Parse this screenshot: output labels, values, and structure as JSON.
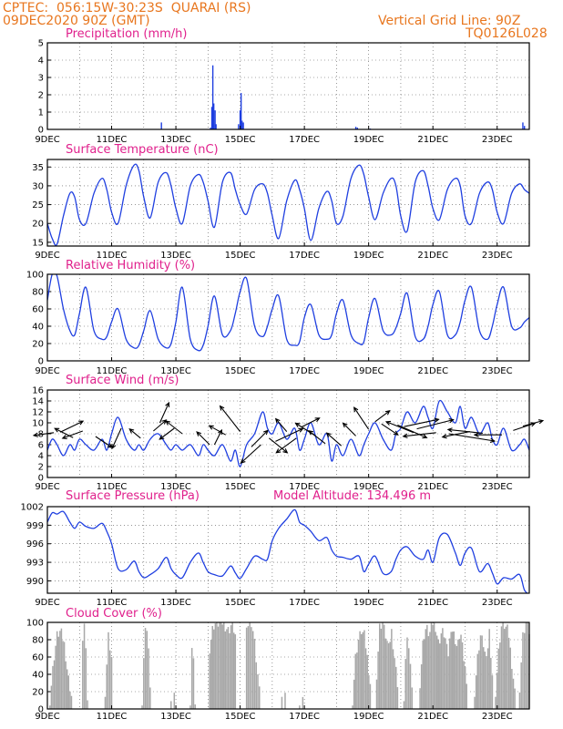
{
  "header": {
    "line1": "CPTEC:  056:15W-30:23S  QUARAI (RS)",
    "line2": "09DEC2020 90Z (GMT)",
    "right1": "Vertical Grid Line: 90Z",
    "right2": "TQ0126L028"
  },
  "x_ticks": [
    "9DEC",
    "11DEC",
    "13DEC",
    "15DEC",
    "17DEC",
    "19DEC",
    "21DEC",
    "23DEC"
  ],
  "colors": {
    "header": "#e8761e",
    "title": "#e0208c",
    "series": "#1f3fe0",
    "cloud": "#a8a8a8"
  },
  "chart_data": [
    {
      "type": "bar",
      "title": "Precipitation (mm/h)",
      "ylim": [
        0,
        5
      ],
      "yticks": [
        "0",
        "1",
        "2",
        "3",
        "4",
        "5"
      ],
      "xlim": [
        9,
        24
      ],
      "x": [
        12.55,
        14.08,
        14.12,
        14.15,
        14.18,
        14.22,
        14.25,
        14.95,
        15.0,
        15.03,
        15.06,
        15.1,
        18.6,
        18.65,
        19.05,
        23.8,
        23.85
      ],
      "values": [
        0.4,
        0.1,
        1.3,
        3.7,
        1.5,
        1.1,
        0.3,
        0.3,
        1.1,
        2.1,
        0.5,
        0.4,
        0.15,
        0.1,
        0.05,
        0.4,
        0.2
      ]
    },
    {
      "type": "line",
      "title": "Surface Temperature (nC)",
      "ylim": [
        14,
        37
      ],
      "yticks": [
        "15",
        "20",
        "25",
        "30",
        "35"
      ],
      "x": [
        9.0,
        9.15,
        9.3,
        9.5,
        9.7,
        9.85,
        10.0,
        10.2,
        10.45,
        10.7,
        10.85,
        11.0,
        11.2,
        11.45,
        11.7,
        11.85,
        12.0,
        12.2,
        12.45,
        12.7,
        12.85,
        13.0,
        13.2,
        13.45,
        13.7,
        13.85,
        14.0,
        14.2,
        14.45,
        14.7,
        14.85,
        15.0,
        15.2,
        15.45,
        15.7,
        15.85,
        16.0,
        16.2,
        16.45,
        16.7,
        16.85,
        17.0,
        17.2,
        17.45,
        17.7,
        17.85,
        18.0,
        18.2,
        18.45,
        18.7,
        18.85,
        19.0,
        19.2,
        19.45,
        19.7,
        19.85,
        20.0,
        20.2,
        20.45,
        20.7,
        20.85,
        21.0,
        21.2,
        21.45,
        21.7,
        21.85,
        22.0,
        22.2,
        22.45,
        22.7,
        22.85,
        23.0,
        23.2,
        23.45,
        23.7,
        23.85,
        24.0
      ],
      "series": [
        {
          "values": [
            20,
            16,
            14.5,
            22,
            28,
            27,
            21,
            20,
            28,
            32,
            29,
            23,
            20,
            30,
            35.5,
            34,
            27,
            21.5,
            31,
            33.5,
            30,
            24,
            20,
            30,
            33,
            31,
            26,
            19,
            31,
            33.5,
            29,
            25,
            22.5,
            29,
            30.5,
            28,
            22,
            16,
            26,
            31.5,
            29,
            24,
            15.5,
            24,
            28.5,
            26,
            20,
            22,
            32,
            35.5,
            33,
            27,
            21,
            28,
            32,
            30,
            22,
            18,
            31,
            34,
            30,
            24,
            21,
            29,
            32,
            30,
            22,
            20,
            28,
            31,
            29,
            23,
            20,
            28,
            30.5,
            29,
            28
          ]
        }
      ]
    },
    {
      "type": "line",
      "title": "Relative Humidity (%)",
      "ylim": [
        0,
        100
      ],
      "yticks": [
        "0",
        "20",
        "40",
        "60",
        "80",
        "100"
      ],
      "x": [
        9.0,
        9.15,
        9.3,
        9.5,
        9.7,
        9.85,
        10.0,
        10.2,
        10.45,
        10.7,
        10.85,
        11.0,
        11.2,
        11.45,
        11.7,
        11.85,
        12.0,
        12.2,
        12.45,
        12.7,
        12.85,
        13.0,
        13.2,
        13.45,
        13.7,
        13.85,
        14.0,
        14.2,
        14.45,
        14.7,
        14.85,
        15.0,
        15.2,
        15.45,
        15.7,
        15.85,
        16.0,
        16.2,
        16.45,
        16.7,
        16.85,
        17.0,
        17.2,
        17.45,
        17.7,
        17.85,
        18.0,
        18.2,
        18.45,
        18.7,
        18.85,
        19.0,
        19.2,
        19.45,
        19.7,
        19.85,
        20.0,
        20.2,
        20.45,
        20.7,
        20.85,
        21.0,
        21.2,
        21.45,
        21.7,
        21.85,
        22.0,
        22.2,
        22.45,
        22.7,
        22.85,
        23.0,
        23.2,
        23.45,
        23.7,
        23.85,
        24.0
      ],
      "series": [
        {
          "values": [
            70,
            100,
            98,
            60,
            35,
            30,
            55,
            85,
            35,
            25,
            28,
            45,
            60,
            25,
            15,
            18,
            35,
            58,
            25,
            15,
            20,
            45,
            85,
            25,
            12,
            18,
            40,
            75,
            30,
            35,
            55,
            80,
            95,
            40,
            28,
            40,
            60,
            75,
            25,
            18,
            22,
            50,
            65,
            30,
            25,
            30,
            55,
            70,
            30,
            20,
            22,
            50,
            72,
            35,
            30,
            38,
            55,
            78,
            28,
            25,
            40,
            65,
            80,
            30,
            30,
            45,
            70,
            85,
            35,
            25,
            40,
            65,
            85,
            40,
            38,
            45,
            50
          ]
        }
      ]
    },
    {
      "type": "line",
      "title": "Surface Wind (m/s)",
      "ylim": [
        0,
        16
      ],
      "yticks": [
        "0",
        "2",
        "4",
        "6",
        "8",
        "10",
        "12",
        "14",
        "16"
      ],
      "x": [
        9.0,
        9.15,
        9.3,
        9.5,
        9.7,
        9.85,
        10.0,
        10.2,
        10.45,
        10.7,
        10.85,
        11.0,
        11.2,
        11.45,
        11.7,
        11.85,
        12.0,
        12.2,
        12.45,
        12.7,
        12.85,
        13.0,
        13.2,
        13.45,
        13.7,
        13.85,
        14.0,
        14.2,
        14.45,
        14.7,
        14.85,
        15.0,
        15.2,
        15.45,
        15.7,
        15.85,
        16.0,
        16.2,
        16.45,
        16.7,
        16.85,
        17.0,
        17.2,
        17.45,
        17.7,
        17.85,
        18.0,
        18.2,
        18.45,
        18.7,
        18.85,
        19.0,
        19.2,
        19.45,
        19.7,
        19.85,
        20.0,
        20.2,
        20.45,
        20.7,
        20.85,
        21.0,
        21.2,
        21.45,
        21.7,
        21.85,
        22.0,
        22.2,
        22.45,
        22.7,
        22.85,
        23.0,
        23.2,
        23.45,
        23.7,
        23.85,
        24.0
      ],
      "series": [
        {
          "values": [
            5,
            7,
            6,
            4,
            6,
            5,
            7,
            6,
            5,
            7,
            5,
            8,
            11,
            7,
            5,
            6,
            5,
            7,
            8,
            6,
            5,
            6,
            5,
            6,
            4,
            6,
            5,
            4,
            6,
            3,
            5,
            2,
            6,
            8,
            12,
            9,
            8,
            10,
            7,
            9,
            5,
            7,
            10,
            6,
            8,
            3,
            6,
            4,
            7,
            4,
            6,
            8,
            10,
            7,
            5,
            8,
            9,
            12,
            10,
            13,
            11,
            9,
            14,
            12,
            10,
            13,
            9,
            11,
            8,
            10,
            7,
            6,
            9,
            5,
            6,
            7,
            5
          ]
        }
      ],
      "arrows": [
        [
          9.2,
          8.2,
          -22,
          3
        ],
        [
          9.4,
          8.3,
          25,
          -12
        ],
        [
          9.8,
          7.3,
          -20,
          -10
        ],
        [
          10.1,
          8.5,
          -22,
          8
        ],
        [
          10.5,
          7.5,
          18,
          12
        ],
        [
          11.3,
          9,
          -10,
          22
        ],
        [
          11.9,
          7.2,
          -12,
          -10
        ],
        [
          12.3,
          8.5,
          14,
          -12
        ],
        [
          12.5,
          10,
          10,
          -22
        ],
        [
          12.95,
          9,
          -16,
          12
        ],
        [
          13.2,
          8,
          -18,
          -14
        ],
        [
          14.05,
          6,
          -14,
          -14
        ],
        [
          14.2,
          6,
          8,
          -16
        ],
        [
          14.55,
          7.8,
          -18,
          -10
        ],
        [
          15.0,
          8.4,
          -22,
          -28
        ],
        [
          15.35,
          5.6,
          18,
          -18
        ],
        [
          15.65,
          6,
          -22,
          20
        ],
        [
          15.9,
          7.2,
          20,
          16
        ],
        [
          16.1,
          6.6,
          30,
          -14
        ],
        [
          16.45,
          8.4,
          -12,
          -14
        ],
        [
          16.75,
          7.2,
          -22,
          16
        ],
        [
          16.9,
          9.2,
          20,
          -10
        ],
        [
          17.35,
          7.6,
          -22,
          -14
        ],
        [
          17.65,
          6.2,
          -18,
          -14
        ],
        [
          18.15,
          5.8,
          -16,
          -14
        ],
        [
          18.6,
          7.6,
          -14,
          -14
        ],
        [
          19.0,
          8.8,
          -16,
          -24
        ],
        [
          19.2,
          10.2,
          16,
          -12
        ],
        [
          19.4,
          9.8,
          18,
          12
        ],
        [
          19.9,
          9.6,
          32,
          14
        ],
        [
          20.1,
          9.3,
          38,
          -8
        ],
        [
          20.4,
          8.2,
          -30,
          -12
        ],
        [
          20.5,
          8.9,
          40,
          -10
        ],
        [
          21.1,
          8.2,
          -36,
          4
        ],
        [
          21.5,
          8,
          50,
          8
        ],
        [
          22.15,
          8.4,
          -30,
          6
        ],
        [
          22.55,
          8.1,
          -38,
          -4
        ],
        [
          23.15,
          7.8,
          -30,
          0
        ],
        [
          23.5,
          8.6,
          24,
          -8
        ],
        [
          23.8,
          9.4,
          22,
          -6
        ]
      ]
    },
    {
      "type": "line",
      "title": "Surface Pressure (hPa)",
      "annotation": "Model Altitude: 134.496 m",
      "ylim": [
        988,
        1002
      ],
      "yticks": [
        "990",
        "993",
        "996",
        "999",
        "1002"
      ],
      "x": [
        9.0,
        9.15,
        9.3,
        9.5,
        9.7,
        9.85,
        10.0,
        10.2,
        10.45,
        10.7,
        10.85,
        11.0,
        11.2,
        11.45,
        11.7,
        11.85,
        12.0,
        12.2,
        12.45,
        12.7,
        12.85,
        13.0,
        13.2,
        13.45,
        13.7,
        13.85,
        14.0,
        14.2,
        14.45,
        14.7,
        14.85,
        15.0,
        15.2,
        15.45,
        15.7,
        15.85,
        16.0,
        16.2,
        16.45,
        16.7,
        16.85,
        17.0,
        17.2,
        17.45,
        17.7,
        17.85,
        18.0,
        18.2,
        18.45,
        18.7,
        18.85,
        19.0,
        19.2,
        19.45,
        19.7,
        19.85,
        20.0,
        20.2,
        20.45,
        20.7,
        20.85,
        21.0,
        21.2,
        21.45,
        21.7,
        21.85,
        22.0,
        22.2,
        22.45,
        22.7,
        22.85,
        23.0,
        23.2,
        23.45,
        23.7,
        23.85,
        24.0
      ],
      "series": [
        {
          "values": [
            999.5,
            1001,
            1000.8,
            1001.2,
            999.5,
            998.5,
            999.5,
            998.8,
            998.5,
            999.3,
            998,
            996,
            992,
            991.8,
            993.2,
            991.5,
            990.5,
            991,
            992,
            993.8,
            992,
            991,
            990.5,
            993,
            994.5,
            993,
            991.5,
            991,
            990.8,
            992.4,
            991.3,
            990.4,
            992,
            994,
            993.5,
            993.5,
            996.5,
            998.5,
            1000,
            1001.5,
            999.5,
            999,
            998,
            996.5,
            997,
            995,
            994,
            993.8,
            993.5,
            994,
            991.5,
            992.7,
            994,
            991.2,
            991.5,
            993.5,
            995,
            995.5,
            994,
            993.5,
            995,
            993,
            997,
            997.5,
            994.5,
            992.5,
            994.5,
            995.3,
            991.5,
            992.8,
            991.3,
            989.5,
            990.5,
            990.3,
            991,
            988.5,
            987.8
          ]
        }
      ]
    },
    {
      "type": "bar",
      "title": "Cloud Cover (%)",
      "ylim": [
        0,
        100
      ],
      "yticks": [
        "0",
        "20",
        "40",
        "60",
        "80",
        "100"
      ],
      "segments": [
        [
          9.08,
          9.75,
          [
            10,
            55,
            85,
            90,
            75,
            40,
            15
          ]
        ],
        [
          10.05,
          10.25,
          [
            5,
            80,
            95,
            75,
            10
          ]
        ],
        [
          10.8,
          11.0,
          [
            20,
            85,
            60
          ]
        ],
        [
          11.95,
          12.2,
          [
            10,
            60,
            90,
            95,
            70,
            20
          ]
        ],
        [
          12.85,
          12.95,
          [
            15,
            45,
            20
          ]
        ],
        [
          13.45,
          13.6,
          [
            10,
            65,
            85,
            40,
            10
          ]
        ],
        [
          14.0,
          14.05,
          [
            0,
            8,
            0
          ]
        ],
        [
          14.05,
          14.85,
          [
            70,
            95,
            100,
            98,
            100,
            95,
            90,
            100,
            85
          ]
        ],
        [
          15.2,
          15.6,
          [
            100,
            95,
            100,
            80,
            50,
            20
          ]
        ],
        [
          16.3,
          16.4,
          [
            20,
            45,
            20
          ]
        ],
        [
          16.85,
          16.95,
          [
            10,
            40,
            15
          ]
        ],
        [
          18.15,
          18.2,
          [
            0,
            25,
            0
          ]
        ],
        [
          18.5,
          19.05,
          [
            10,
            60,
            80,
            90,
            85,
            60,
            30
          ]
        ],
        [
          19.25,
          19.9,
          [
            40,
            95,
            100,
            85,
            70,
            90,
            60,
            30
          ]
        ],
        [
          20.1,
          20.35,
          [
            15,
            70,
            85,
            60,
            20
          ]
        ],
        [
          20.6,
          22.05,
          [
            30,
            80,
            95,
            85,
            100,
            95,
            75,
            90,
            85,
            60,
            95,
            85,
            70,
            90,
            60,
            35
          ]
        ],
        [
          22.3,
          22.85,
          [
            20,
            60,
            85,
            75,
            55,
            90,
            40
          ]
        ],
        [
          22.95,
          23.55,
          [
            20,
            70,
            100,
            95,
            90,
            55,
            20
          ]
        ],
        [
          23.7,
          24.0,
          [
            25,
            85,
            100,
            90
          ]
        ]
      ]
    }
  ]
}
